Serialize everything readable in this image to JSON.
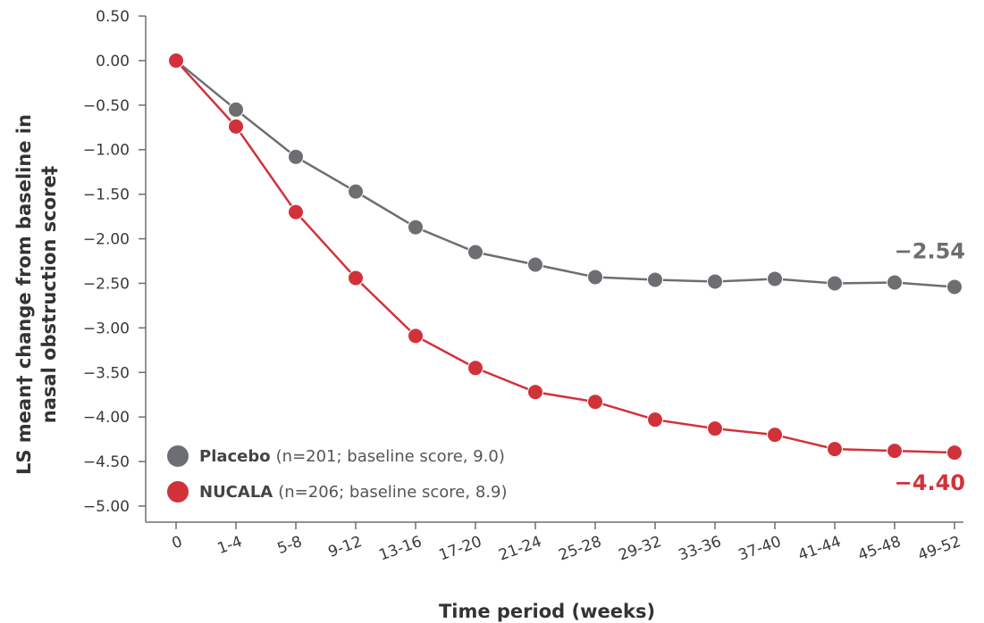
{
  "chart_data": {
    "type": "line",
    "xlabel": "Time period (weeks)",
    "ylabel_lines": [
      "LS mean† change from baseline in",
      "nasal obstruction score‡"
    ],
    "ylim": [
      -5.0,
      0.5
    ],
    "yticks": [
      "0.50",
      "0.00",
      "−0.50",
      "−1.00",
      "−1.50",
      "−2.00",
      "−2.50",
      "−3.00",
      "−3.50",
      "−4.00",
      "−4.50",
      "−5.00"
    ],
    "ytick_values": [
      0.5,
      0.0,
      -0.5,
      -1.0,
      -1.5,
      -2.0,
      -2.5,
      -3.0,
      -3.5,
      -4.0,
      -4.5,
      -5.0
    ],
    "categories": [
      "0",
      "1-4",
      "5-8",
      "9-12",
      "13-16",
      "17-20",
      "21-24",
      "25-28",
      "29-32",
      "33-36",
      "37-40",
      "41-44",
      "45-48",
      "49-52"
    ],
    "grid": false,
    "legend_position": "bottom-left",
    "series": [
      {
        "name": "Placebo",
        "legend_desc": "(n=201; baseline score, 9.0)",
        "color": "#6d6e71",
        "values": [
          0.0,
          -0.55,
          -1.08,
          -1.47,
          -1.87,
          -2.15,
          -2.29,
          -2.43,
          -2.46,
          -2.48,
          -2.45,
          -2.5,
          -2.49,
          -2.54
        ],
        "end_label": "−2.54"
      },
      {
        "name": "NUCALA",
        "legend_desc": "(n=206; baseline score, 8.9)",
        "color": "#d1323a",
        "values": [
          0.0,
          -0.74,
          -1.7,
          -2.44,
          -3.09,
          -3.45,
          -3.72,
          -3.83,
          -4.03,
          -4.13,
          -4.2,
          -4.36,
          -4.38,
          -4.4
        ],
        "end_label": "−4.40"
      }
    ]
  }
}
